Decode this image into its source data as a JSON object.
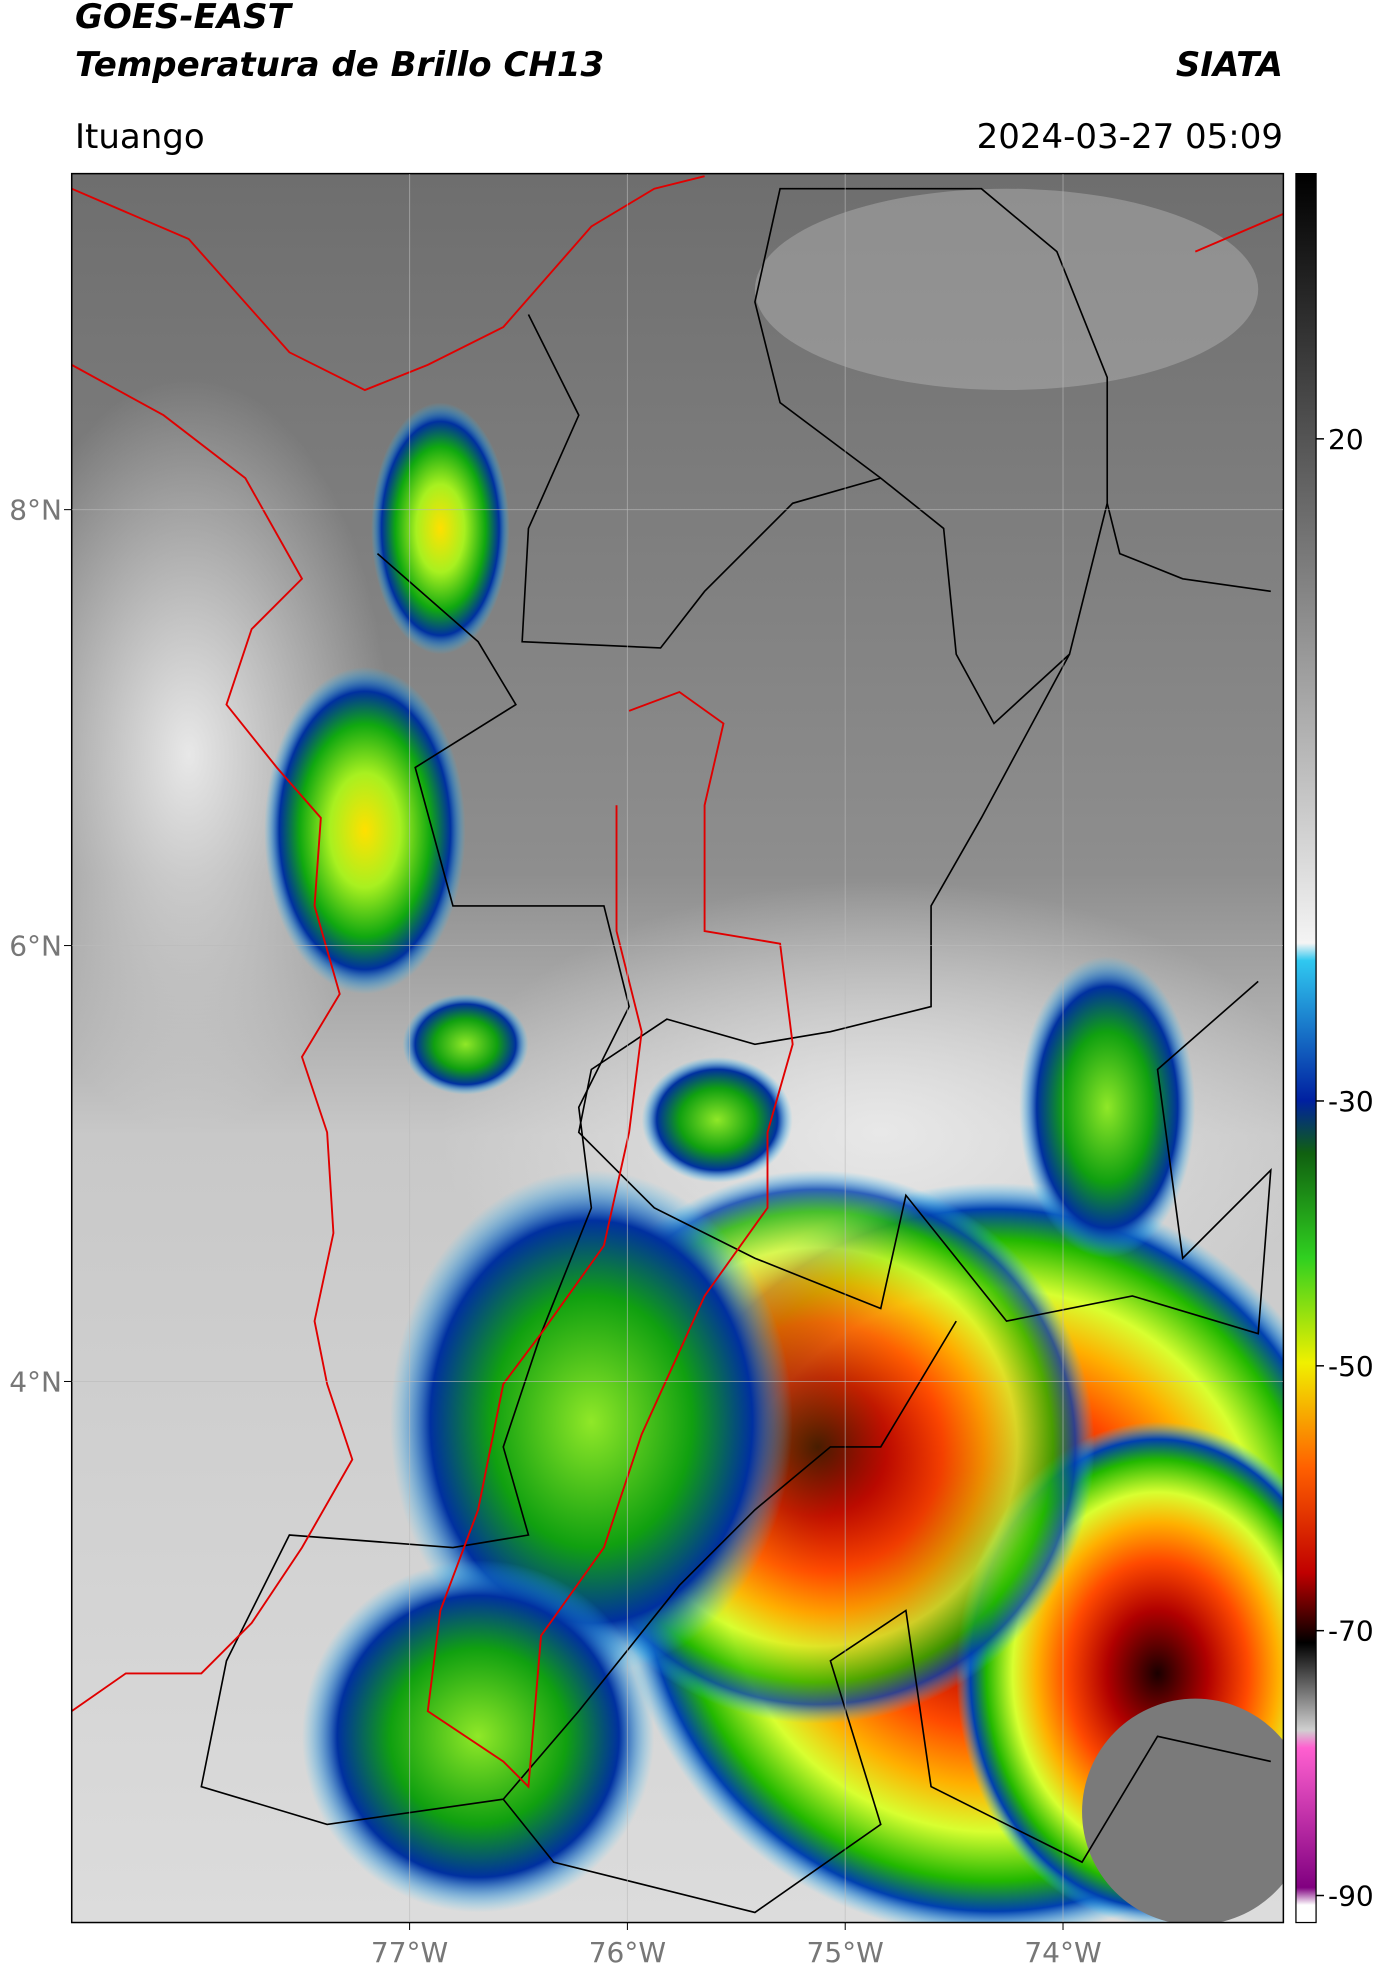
{
  "header": {
    "title_line1": "GOES-EAST",
    "title_line2": "Temperatura de Brillo CH13",
    "agency": "SIATA",
    "location": "Ituango",
    "timestamp": "2024-03-27 05:09"
  },
  "map": {
    "xlim": [
      -78.55,
      -72.99
    ],
    "ylim": [
      1.52,
      9.54
    ],
    "lat_ticks": [
      {
        "value": 8,
        "label": "8°N"
      },
      {
        "value": 6,
        "label": "6°N"
      },
      {
        "value": 4,
        "label": "4°N"
      }
    ],
    "lon_ticks": [
      {
        "value": -77,
        "label": "77°W"
      },
      {
        "value": -76,
        "label": "76°W"
      },
      {
        "value": -75,
        "label": "75°W"
      },
      {
        "value": -74,
        "label": "74°W"
      }
    ],
    "colorbar": {
      "lim": [
        40,
        -92
      ],
      "ticks": [
        20,
        -30,
        -50,
        -70,
        -90
      ]
    }
  }
}
